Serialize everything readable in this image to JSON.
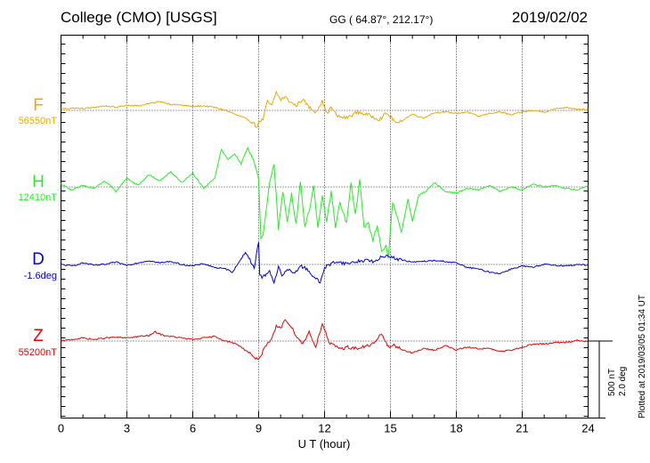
{
  "header": {
    "station": "College (CMO)  [USGS]",
    "coords": "GG ( 64.87°, 212.17°)",
    "date": "2019/02/02"
  },
  "side": {
    "scale": "500 nT",
    "scale_deg": "2.0 deg",
    "plotted": "Plotted at 2019/03/05 01:34 UT"
  },
  "chart_data": {
    "type": "line",
    "xlabel": "U T (hour)",
    "xlim": [
      0,
      24
    ],
    "xticks": [
      "0",
      "3",
      "6",
      "9",
      "12",
      "15",
      "18",
      "21",
      "24"
    ],
    "grid": true,
    "series": [
      {
        "name": "F",
        "baseline": "56550nT",
        "color": "#f0a800",
        "x": [
          0,
          0.5,
          1,
          1.5,
          2,
          2.5,
          3,
          3.5,
          4,
          4.25,
          4.5,
          5,
          5.5,
          6,
          6.5,
          7,
          7.5,
          8,
          8.25,
          8.5,
          8.75,
          8.9,
          9.05,
          9.2,
          9.4,
          9.6,
          9.8,
          10,
          10.2,
          10.4,
          10.7,
          11,
          11.3,
          11.6,
          11.9,
          12.1,
          12.3,
          12.6,
          13,
          13.5,
          14,
          14.5,
          14.8,
          15,
          15.3,
          15.6,
          16,
          16.5,
          17,
          17.5,
          18,
          18.5,
          19,
          19.5,
          20,
          20.5,
          21,
          21.5,
          22,
          22.5,
          23,
          23.5,
          24
        ],
        "y": [
          10,
          15,
          12,
          20,
          30,
          20,
          35,
          30,
          45,
          50,
          60,
          40,
          35,
          25,
          30,
          20,
          0,
          -30,
          -45,
          -60,
          -80,
          -110,
          -70,
          -60,
          60,
          30,
          120,
          70,
          90,
          60,
          30,
          75,
          20,
          -10,
          60,
          -20,
          20,
          -40,
          -50,
          -10,
          -30,
          -60,
          -20,
          -40,
          -90,
          -60,
          -25,
          -50,
          -15,
          -10,
          -20,
          -10,
          -40,
          -20,
          -10,
          -30,
          -10,
          0,
          -10,
          10,
          20,
          10,
          5
        ]
      },
      {
        "name": "H",
        "baseline": "12410nT",
        "color": "#22ee22",
        "x": [
          0,
          0.5,
          1,
          1.5,
          2,
          2.5,
          3,
          3.5,
          4,
          4.5,
          5,
          5.5,
          6,
          6.5,
          7,
          7.3,
          7.6,
          7.9,
          8.2,
          8.5,
          8.8,
          9,
          9.1,
          9.2,
          9.35,
          9.5,
          9.7,
          9.9,
          10.1,
          10.3,
          10.5,
          10.7,
          10.9,
          11.1,
          11.3,
          11.5,
          11.7,
          11.9,
          12.1,
          12.3,
          12.5,
          12.7,
          13,
          13.2,
          13.4,
          13.6,
          13.8,
          14,
          14.2,
          14.4,
          14.6,
          14.8,
          14.9,
          15.1,
          15.3,
          15.5,
          15.8,
          16,
          16.3,
          16.6,
          17,
          17.5,
          18,
          18.5,
          19,
          19.5,
          20,
          20.5,
          21,
          21.5,
          22,
          22.5,
          23,
          23.5,
          24
        ],
        "y": [
          20,
          -20,
          10,
          -10,
          40,
          -30,
          60,
          10,
          80,
          40,
          100,
          30,
          90,
          -10,
          60,
          250,
          180,
          220,
          150,
          260,
          170,
          50,
          -350,
          -320,
          -150,
          30,
          160,
          -280,
          -30,
          -230,
          -40,
          -250,
          40,
          -260,
          -160,
          10,
          -280,
          -60,
          -230,
          -30,
          -270,
          -100,
          -240,
          20,
          -180,
          40,
          -260,
          -240,
          -360,
          -250,
          -430,
          -380,
          -470,
          -100,
          -200,
          -300,
          -80,
          -230,
          -50,
          -30,
          30,
          -30,
          -40,
          -10,
          -20,
          10,
          -30,
          0,
          -20,
          20,
          0,
          10,
          -10,
          -20,
          10
        ]
      },
      {
        "name": "D",
        "baseline": "-1.6deg",
        "color": "#0000dd",
        "x": [
          0,
          0.5,
          1,
          1.5,
          2,
          2.5,
          3,
          3.5,
          4,
          4.5,
          5,
          5.5,
          6,
          6.5,
          7,
          7.5,
          7.8,
          8,
          8.2,
          8.4,
          8.6,
          8.8,
          9,
          9.05,
          9.15,
          9.3,
          9.5,
          9.7,
          9.9,
          10.1,
          10.3,
          10.6,
          10.9,
          11.2,
          11.5,
          11.8,
          12,
          12.5,
          13,
          13.5,
          14,
          14.3,
          14.6,
          14.9,
          15.2,
          15.5,
          16,
          16.5,
          17,
          17.5,
          18,
          18.5,
          19,
          19.5,
          20,
          20.5,
          21,
          21.5,
          22,
          22.5,
          23,
          23.5,
          24
        ],
        "y": [
          0,
          -10,
          10,
          -5,
          0,
          15,
          -5,
          10,
          25,
          10,
          20,
          0,
          -10,
          5,
          -20,
          -30,
          -50,
          -10,
          40,
          80,
          30,
          -20,
          150,
          -60,
          -90,
          -70,
          -40,
          -120,
          -20,
          -80,
          -30,
          -60,
          -10,
          -30,
          -80,
          -120,
          -20,
          20,
          5,
          20,
          30,
          15,
          50,
          60,
          40,
          30,
          15,
          20,
          25,
          20,
          10,
          -20,
          -30,
          -50,
          -60,
          -30,
          -10,
          -20,
          0,
          -5,
          -10,
          0,
          -5
        ]
      },
      {
        "name": "Z",
        "baseline": "55200nT",
        "color": "#ee0000",
        "x": [
          0,
          0.5,
          1,
          1.5,
          2,
          2.5,
          3,
          3.5,
          4,
          4.3,
          4.6,
          5,
          5.5,
          6,
          6.5,
          7,
          7.5,
          8,
          8.3,
          8.6,
          8.9,
          9.1,
          9.3,
          9.6,
          9.8,
          10,
          10.2,
          10.4,
          10.7,
          11,
          11.3,
          11.6,
          11.9,
          12.2,
          12.5,
          12.8,
          13,
          13.5,
          14,
          14.3,
          14.6,
          14.9,
          15.2,
          15.6,
          16,
          16.5,
          17,
          17.5,
          18,
          18.5,
          19,
          19.5,
          20,
          20.5,
          21,
          21.5,
          22,
          22.5,
          23,
          23.5,
          24
        ],
        "y": [
          0,
          10,
          20,
          10,
          20,
          25,
          20,
          30,
          35,
          60,
          40,
          30,
          20,
          10,
          20,
          30,
          0,
          -20,
          -50,
          -80,
          -120,
          -100,
          -40,
          10,
          100,
          80,
          150,
          110,
          40,
          -20,
          60,
          -40,
          120,
          -10,
          -40,
          -50,
          -40,
          -50,
          -30,
          -10,
          50,
          -40,
          -30,
          -60,
          -80,
          -50,
          -60,
          -30,
          -60,
          -40,
          -50,
          -50,
          -70,
          -60,
          -40,
          -20,
          -20,
          -10,
          -10,
          5,
          -5
        ]
      }
    ]
  }
}
